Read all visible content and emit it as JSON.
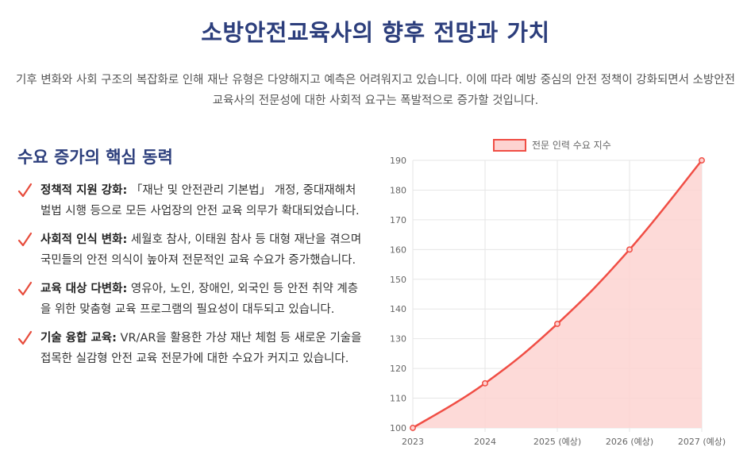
{
  "page": {
    "title": "소방안전교육사의 향후 전망과 가치",
    "intro": "기후 변화와 사회 구조의 복잡화로 인해 재난 유형은 다양해지고 예측은 어려워지고 있습니다. 이에 따라 예방 중심의 안전 정책이 강화되면서 소방안전교육사의 전문성에 대한 사회적 요구는 폭발적으로 증가할 것입니다."
  },
  "drivers": {
    "heading": "수요 증가의 핵심 동력",
    "icon": "check-icon",
    "accent_color": "#e74c3c",
    "items": [
      {
        "title": "정책적 지원 강화:",
        "text": "「재난 및 안전관리 기본법」 개정, 중대재해처벌법 시행 등으로 모든 사업장의 안전 교육 의무가 확대되었습니다."
      },
      {
        "title": "사회적 인식 변화:",
        "text": "세월호 참사, 이태원 참사 등 대형 재난을 겪으며 국민들의 안전 의식이 높아져 전문적인 교육 수요가 증가했습니다."
      },
      {
        "title": "교육 대상 다변화:",
        "text": "영유아, 노인, 장애인, 외국인 등 안전 취약 계층을 위한 맞춤형 교육 프로그램의 필요성이 대두되고 있습니다."
      },
      {
        "title": "기술 융합 교육:",
        "text": "VR/AR을 활용한 가상 재난 체험 등 새로운 기술을 접목한 실감형 안전 교육 전문가에 대한 수요가 커지고 있습니다."
      }
    ]
  },
  "chart_data": {
    "type": "area",
    "categories": [
      "2023",
      "2024",
      "2025 (예상)",
      "2026 (예상)",
      "2027 (예상)"
    ],
    "series": [
      {
        "name": "전문 인력 수요 지수",
        "values": [
          100,
          115,
          135,
          160,
          190
        ],
        "color": "#f04e45",
        "fill": "#fdd3d1"
      }
    ],
    "ylim": [
      100,
      190
    ],
    "yticks": [
      "100",
      "110",
      "120",
      "130",
      "140",
      "150",
      "160",
      "170",
      "180",
      "190"
    ],
    "grid": true,
    "legend": "top-center",
    "curve": "smooth"
  }
}
